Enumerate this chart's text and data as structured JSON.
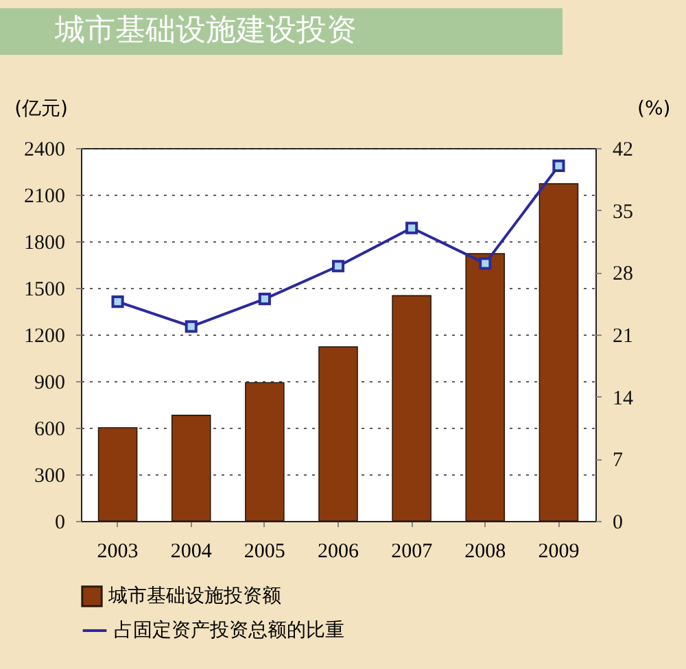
{
  "chart_data": {
    "type": "bar",
    "title": "城市基础设施建设投资",
    "ylabel": "(亿元)",
    "y2label": "(%)",
    "categories": [
      "2003",
      "2004",
      "2005",
      "2006",
      "2007",
      "2008",
      "2009"
    ],
    "series": [
      {
        "name": "城市基础设施投资额",
        "color": "#8b3a0e",
        "values": [
          600,
          680,
          890,
          1120,
          1450,
          1720,
          2170
        ]
      },
      {
        "name": "占固定资产投资总额的比重",
        "type": "line",
        "axis": "y2",
        "color": "#2b2a9c",
        "values": [
          24.7,
          21.9,
          25.0,
          28.7,
          33.0,
          29.0,
          40.0
        ]
      }
    ],
    "ylim": [
      0,
      2400
    ],
    "yticks": [
      0,
      300,
      600,
      900,
      1200,
      1500,
      1800,
      2100,
      2400
    ],
    "y2lim": [
      0,
      42
    ],
    "y2ticks": [
      0,
      7,
      14,
      21,
      28,
      35,
      42
    ],
    "grid": "y",
    "legend": "bottom",
    "marker": "square",
    "line_style": "solid"
  }
}
